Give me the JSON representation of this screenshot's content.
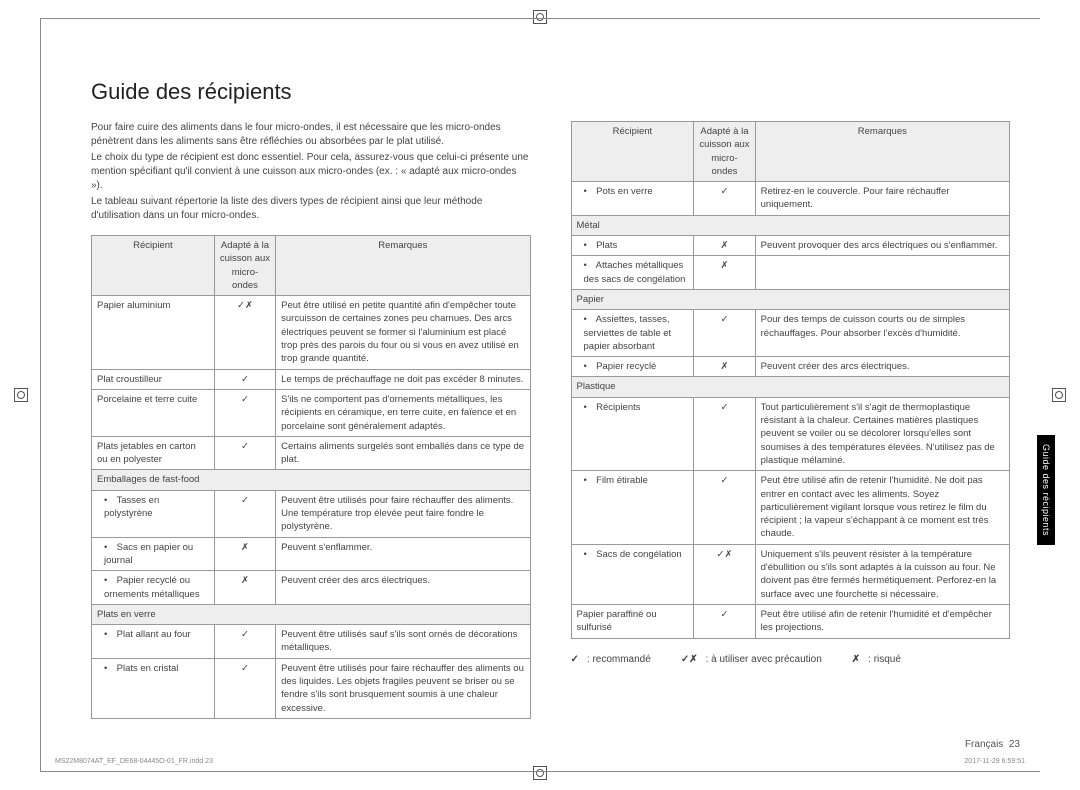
{
  "title": "Guide des récipients",
  "intro": [
    "Pour faire cuire des aliments dans le four micro-ondes, il est nécessaire que les micro-ondes pénètrent dans les aliments sans être réfléchies ou absorbées par le plat utilisé.",
    "Le choix du type de récipient est donc essentiel. Pour cela, assurez-vous que celui-ci présente une mention spécifiant qu'il convient à une cuisson aux micro-ondes (ex. : « adapté aux micro-ondes »).",
    "Le tableau suivant répertorie la liste des divers types de récipient ainsi que leur méthode d'utilisation dans un four micro-ondes."
  ],
  "headers": {
    "recipient": "Récipient",
    "safe": "Adapté à la cuisson aux micro-ondes",
    "remarks": "Remarques"
  },
  "left_rows": [
    {
      "r": "Papier aluminium",
      "s": "✓✗",
      "n": "Peut être utilisé en petite quantité afin d'empêcher toute surcuisson de certaines zones peu charnues. Des arcs électriques peuvent se former si l'aluminium est placé trop près des parois du four ou si vous en avez utilisé en trop grande quantité."
    },
    {
      "r": "Plat croustilleur",
      "s": "✓",
      "n": "Le temps de préchauffage ne doit pas excéder 8 minutes."
    },
    {
      "r": "Porcelaine et terre cuite",
      "s": "✓",
      "n": "S'ils ne comportent pas d'ornements métalliques, les récipients en céramique, en terre cuite, en faïence et en porcelaine sont généralement adaptés."
    },
    {
      "r": "Plats jetables en carton ou en polyester",
      "s": "✓",
      "n": "Certains aliments surgelés sont emballés dans ce type de plat."
    },
    {
      "sub": "Emballages de fast-food"
    },
    {
      "r": "Tasses en polystyrène",
      "b": true,
      "s": "✓",
      "n": "Peuvent être utilisés pour faire réchauffer des aliments. Une température trop élevée peut faire fondre le polystyrène."
    },
    {
      "r": "Sacs en papier ou journal",
      "b": true,
      "s": "✗",
      "n": "Peuvent s'enflammer."
    },
    {
      "r": "Papier recyclé ou ornements métalliques",
      "b": true,
      "s": "✗",
      "n": "Peuvent créer des arcs électriques."
    },
    {
      "sub": "Plats en verre"
    },
    {
      "r": "Plat allant au four",
      "b": true,
      "s": "✓",
      "n": "Peuvent être utilisés sauf s'ils sont ornés de décorations métalliques."
    },
    {
      "r": "Plats en cristal",
      "b": true,
      "s": "✓",
      "n": "Peuvent être utilisés pour faire réchauffer des aliments ou des liquides. Les objets fragiles peuvent se briser ou se fendre s'ils sont brusquement soumis à une chaleur excessive."
    }
  ],
  "right_rows": [
    {
      "r": "Pots en verre",
      "b": true,
      "s": "✓",
      "n": "Retirez-en le couvercle. Pour faire réchauffer uniquement."
    },
    {
      "sub": "Métal"
    },
    {
      "r": "Plats",
      "b": true,
      "s": "✗",
      "n": "Peuvent provoquer des arcs électriques ou s'enflammer."
    },
    {
      "r": "Attaches métalliques des sacs de congélation",
      "b": true,
      "s": "✗",
      "n": ""
    },
    {
      "sub": "Papier"
    },
    {
      "r": "Assiettes, tasses, serviettes de table et papier absorbant",
      "b": true,
      "s": "✓",
      "n": "Pour des temps de cuisson courts ou de simples réchauffages. Pour absorber l'excès d'humidité."
    },
    {
      "r": "Papier recyclé",
      "b": true,
      "s": "✗",
      "n": "Peuvent créer des arcs électriques."
    },
    {
      "sub": "Plastique"
    },
    {
      "r": "Récipients",
      "b": true,
      "s": "✓",
      "n": "Tout particulièrement s'il s'agit de thermoplastique résistant à la chaleur. Certaines matières plastiques peuvent se voiler ou se décolorer lorsqu'elles sont soumises à des températures élevées. N'utilisez pas de plastique mélaminé."
    },
    {
      "r": "Film étirable",
      "b": true,
      "s": "✓",
      "n": "Peut être utilisé afin de retenir l'humidité. Ne doit pas entrer en contact avec les aliments. Soyez particulièrement vigilant lorsque vous retirez le film du récipient ; la vapeur s'échappant à ce moment est très chaude."
    },
    {
      "r": "Sacs de congélation",
      "b": true,
      "s": "✓✗",
      "n": "Uniquement s'ils peuvent résister à la température d'ébullition ou s'ils sont adaptés à la cuisson au four. Ne doivent pas être fermés hermétiquement. Perforez-en la surface avec une fourchette si nécessaire."
    },
    {
      "r": "Papier paraffiné ou sulfurisé",
      "s": "✓",
      "n": "Peut être utilisé afin de retenir l'humidité et d'empêcher les projections."
    }
  ],
  "legend": {
    "ok": "✓",
    "ok_label": ": recommandé",
    "warn": "✓✗",
    "warn_label": ": à utiliser avec précaution",
    "no": "✗",
    "no_label": ": risqué"
  },
  "sidetab": "Guide des récipients",
  "footer_lang": "Français",
  "footer_page": "23",
  "footer_file": "MS22M8074AT_EF_DE68-04445O-01_FR.indd   23",
  "footer_ts": "2017-11-29   6:59:51"
}
